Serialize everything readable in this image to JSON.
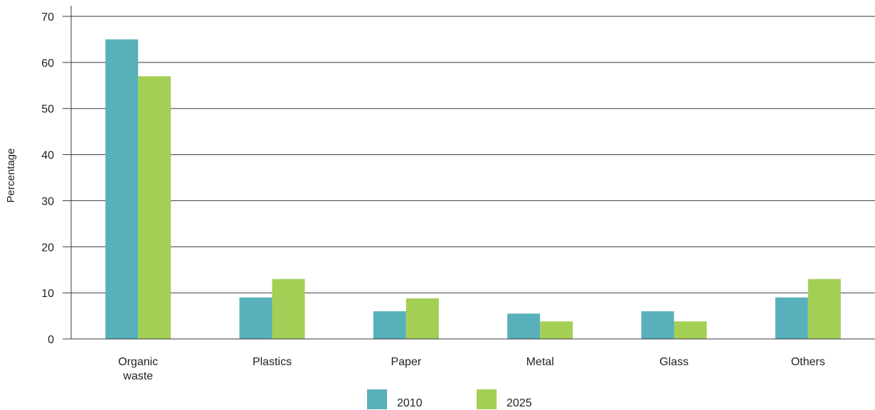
{
  "chart_data": {
    "type": "bar",
    "title": "",
    "xlabel": "",
    "ylabel": "Percentage",
    "ylim": [
      0,
      70
    ],
    "yticks": [
      0,
      10,
      20,
      30,
      40,
      50,
      60,
      70
    ],
    "grid": true,
    "legend_position": "bottom-center",
    "categories": [
      [
        "Organic",
        "waste"
      ],
      [
        "Plastics"
      ],
      [
        "Paper"
      ],
      [
        "Metal"
      ],
      [
        "Glass"
      ],
      [
        "Others"
      ]
    ],
    "series": [
      {
        "name": "2010",
        "color": "#58b0bb",
        "values": [
          65,
          9,
          6,
          5.5,
          6,
          9
        ]
      },
      {
        "name": "2025",
        "color": "#a3cf55",
        "values": [
          57,
          13,
          8.8,
          3.8,
          3.8,
          13
        ]
      }
    ]
  }
}
